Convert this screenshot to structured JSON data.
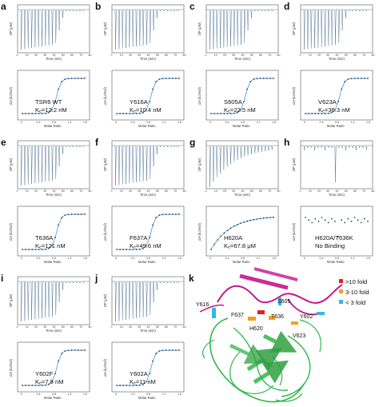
{
  "figure": {
    "panel_letters": [
      "a",
      "b",
      "c",
      "d",
      "e",
      "f",
      "g",
      "h",
      "i",
      "j",
      "k"
    ],
    "top_xlabel": "Time (min)",
    "top_ylabel": "DP (μW)",
    "bottom_xlabel": "Molar Ratio",
    "bottom_ylabel": "ΔH (kJ/mol)",
    "structure_legend": [
      {
        "label": ">10 fold",
        "color": "#e02020"
      },
      {
        "label": "3-10 fold",
        "color": "#f0a020"
      },
      {
        "label": "< 3 fold",
        "color": "#30b8e8"
      }
    ],
    "residue_labels": [
      "Y616",
      "S605",
      "F637",
      "H620",
      "T636",
      "Y602",
      "V623"
    ]
  },
  "chart_data": [
    {
      "panel": "a",
      "type": "line",
      "ligand": "TSR6 WT",
      "kd": "Kₑ=12.2 nM",
      "kd_nM": 12.2,
      "binding": "sigmoid"
    },
    {
      "panel": "b",
      "type": "line",
      "ligand": "Y616A",
      "kd": "Kₑ=10.4 nM",
      "kd_nM": 10.4,
      "binding": "sigmoid"
    },
    {
      "panel": "c",
      "type": "line",
      "ligand": "S605A",
      "kd": "Kₑ=22.5 nM",
      "kd_nM": 22.5,
      "binding": "sigmoid"
    },
    {
      "panel": "d",
      "type": "line",
      "ligand": "V623A",
      "kd": "Kₑ=36.3 nM",
      "kd_nM": 36.3,
      "binding": "sigmoid"
    },
    {
      "panel": "e",
      "type": "line",
      "ligand": "T636A",
      "kd": "Kₑ=121 nM",
      "kd_nM": 121,
      "binding": "sigmoid"
    },
    {
      "panel": "f",
      "type": "line",
      "ligand": "F637A",
      "kd": "Kₑ=49.6 nM",
      "kd_nM": 49.6,
      "binding": "sigmoid"
    },
    {
      "panel": "g",
      "type": "line",
      "ligand": "H620A",
      "kd": "Kₑ=67.8 μM",
      "kd_nM": 67800,
      "binding": "hyperbolic"
    },
    {
      "panel": "h",
      "type": "scatter",
      "ligand": "H620A/T636K",
      "kd": "No Binding",
      "binding": "none"
    },
    {
      "panel": "i",
      "type": "line",
      "ligand": "Y602F",
      "kd": "Kₑ=7.8 nM",
      "kd_nM": 7.8,
      "binding": "sigmoid"
    },
    {
      "panel": "j",
      "type": "line",
      "ligand": "Y602A",
      "kd": "Kₑ=11 nM",
      "kd_nM": 11,
      "binding": "sigmoid"
    }
  ]
}
